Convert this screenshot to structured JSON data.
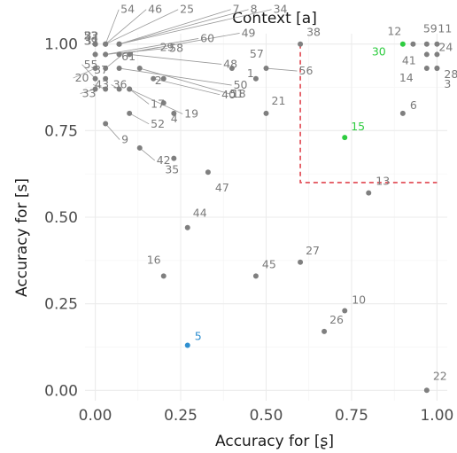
{
  "chart_data": {
    "type": "scatter",
    "title": "Context [a]",
    "xlabel": "Accuracy for [ʂ]",
    "ylabel": "Accuracy for [s]",
    "xlim": [
      -0.03,
      1.03
    ],
    "ylim": [
      -0.03,
      1.03
    ],
    "x_ticks": [
      0,
      0.25,
      0.5,
      0.75,
      1
    ],
    "y_ticks": [
      0,
      0.25,
      0.5,
      0.75,
      1
    ],
    "x_tick_labels": [
      "0.00",
      "0.25",
      "0.50",
      "0.75",
      "1.00"
    ],
    "y_tick_labels": [
      "0.00",
      "0.25",
      "0.50",
      "0.75",
      "1.00"
    ],
    "grid": true,
    "colors": {
      "default": "#7f7f7f",
      "highlight_green": "#2ecc40",
      "highlight_blue": "#2f8fd0",
      "threshold_line": "#e0454f"
    },
    "threshold": {
      "x_min": 0.6,
      "y_min": 0.6
    },
    "points": [
      {
        "label": "1",
        "x": 0.47,
        "y": 0.9,
        "color": "#7f7f7f"
      },
      {
        "label": "2",
        "x": 0.2,
        "y": 0.9,
        "color": "#7f7f7f"
      },
      {
        "label": "3",
        "x": 1.0,
        "y": 0.93,
        "color": "#7f7f7f"
      },
      {
        "label": "4",
        "x": 0.2,
        "y": 0.83,
        "color": "#7f7f7f"
      },
      {
        "label": "5",
        "x": 0.27,
        "y": 0.13,
        "color": "#2f8fd0"
      },
      {
        "label": "6",
        "x": 0.9,
        "y": 0.8,
        "color": "#7f7f7f"
      },
      {
        "label": "7",
        "x": 0.07,
        "y": 1.0,
        "color": "#7f7f7f"
      },
      {
        "label": "8",
        "x": 0.07,
        "y": 1.0,
        "color": "#7f7f7f"
      },
      {
        "label": "9",
        "x": 0.03,
        "y": 0.77,
        "color": "#7f7f7f"
      },
      {
        "label": "10",
        "x": 0.73,
        "y": 0.23,
        "color": "#7f7f7f"
      },
      {
        "label": "11",
        "x": 1.0,
        "y": 1.0,
        "color": "#7f7f7f"
      },
      {
        "label": "12",
        "x": 0.93,
        "y": 1.0,
        "color": "#7f7f7f"
      },
      {
        "label": "13",
        "x": 0.8,
        "y": 0.57,
        "color": "#7f7f7f"
      },
      {
        "label": "14",
        "x": 0.97,
        "y": 0.93,
        "color": "#7f7f7f"
      },
      {
        "label": "15",
        "x": 0.73,
        "y": 0.73,
        "color": "#2ecc40"
      },
      {
        "label": "16",
        "x": 0.2,
        "y": 0.33,
        "color": "#7f7f7f"
      },
      {
        "label": "17",
        "x": 0.1,
        "y": 0.87,
        "color": "#7f7f7f"
      },
      {
        "label": "18",
        "x": 0.13,
        "y": 0.93,
        "color": "#7f7f7f"
      },
      {
        "label": "19",
        "x": 0.1,
        "y": 0.87,
        "color": "#7f7f7f"
      },
      {
        "label": "20",
        "x": 0.0,
        "y": 0.93,
        "color": "#7f7f7f"
      },
      {
        "label": "21",
        "x": 0.5,
        "y": 0.8,
        "color": "#7f7f7f"
      },
      {
        "label": "22",
        "x": 0.97,
        "y": 0.0,
        "color": "#7f7f7f"
      },
      {
        "label": "23",
        "x": 0.0,
        "y": 1.0,
        "color": "#7f7f7f"
      },
      {
        "label": "24",
        "x": 1.0,
        "y": 0.97,
        "color": "#7f7f7f"
      },
      {
        "label": "25",
        "x": 0.03,
        "y": 1.0,
        "color": "#7f7f7f"
      },
      {
        "label": "26",
        "x": 0.67,
        "y": 0.17,
        "color": "#7f7f7f"
      },
      {
        "label": "27",
        "x": 0.6,
        "y": 0.37,
        "color": "#7f7f7f"
      },
      {
        "label": "28",
        "x": 1.0,
        "y": 0.93,
        "color": "#7f7f7f"
      },
      {
        "label": "29",
        "x": 0.07,
        "y": 0.97,
        "color": "#7f7f7f"
      },
      {
        "label": "30",
        "x": 0.9,
        "y": 1.0,
        "color": "#2ecc40"
      },
      {
        "label": "31",
        "x": 0.0,
        "y": 0.97,
        "color": "#7f7f7f"
      },
      {
        "label": "32",
        "x": 0.0,
        "y": 1.0,
        "color": "#7f7f7f"
      },
      {
        "label": "33",
        "x": 0.0,
        "y": 0.87,
        "color": "#7f7f7f"
      },
      {
        "label": "34",
        "x": 0.07,
        "y": 1.0,
        "color": "#7f7f7f"
      },
      {
        "label": "35",
        "x": 0.23,
        "y": 0.67,
        "color": "#7f7f7f"
      },
      {
        "label": "36",
        "x": 0.07,
        "y": 0.87,
        "color": "#7f7f7f"
      },
      {
        "label": "37",
        "x": 0.03,
        "y": 0.9,
        "color": "#7f7f7f"
      },
      {
        "label": "38",
        "x": 0.6,
        "y": 1.0,
        "color": "#7f7f7f"
      },
      {
        "label": "39",
        "x": 0.0,
        "y": 0.97,
        "color": "#7f7f7f"
      },
      {
        "label": "40",
        "x": 0.17,
        "y": 0.9,
        "color": "#7f7f7f"
      },
      {
        "label": "41",
        "x": 0.97,
        "y": 0.97,
        "color": "#7f7f7f"
      },
      {
        "label": "42",
        "x": 0.13,
        "y": 0.7,
        "color": "#7f7f7f"
      },
      {
        "label": "43",
        "x": 0.03,
        "y": 0.87,
        "color": "#7f7f7f"
      },
      {
        "label": "44",
        "x": 0.27,
        "y": 0.47,
        "color": "#7f7f7f"
      },
      {
        "label": "45",
        "x": 0.47,
        "y": 0.33,
        "color": "#7f7f7f"
      },
      {
        "label": "46",
        "x": 0.03,
        "y": 1.0,
        "color": "#7f7f7f"
      },
      {
        "label": "47",
        "x": 0.33,
        "y": 0.63,
        "color": "#7f7f7f"
      },
      {
        "label": "48",
        "x": 0.1,
        "y": 0.97,
        "color": "#7f7f7f"
      },
      {
        "label": "49",
        "x": 0.07,
        "y": 0.97,
        "color": "#7f7f7f"
      },
      {
        "label": "50",
        "x": 0.07,
        "y": 0.93,
        "color": "#7f7f7f"
      },
      {
        "label": "51",
        "x": 0.23,
        "y": 0.8,
        "color": "#7f7f7f"
      },
      {
        "label": "52",
        "x": 0.1,
        "y": 0.8,
        "color": "#7f7f7f"
      },
      {
        "label": "53",
        "x": 0.0,
        "y": 1.0,
        "color": "#7f7f7f"
      },
      {
        "label": "54",
        "x": 0.03,
        "y": 1.0,
        "color": "#7f7f7f"
      },
      {
        "label": "55",
        "x": 0.0,
        "y": 0.9,
        "color": "#7f7f7f"
      },
      {
        "label": "56",
        "x": 0.5,
        "y": 0.93,
        "color": "#7f7f7f"
      },
      {
        "label": "57",
        "x": 0.4,
        "y": 0.93,
        "color": "#7f7f7f"
      },
      {
        "label": "58",
        "x": 0.03,
        "y": 0.97,
        "color": "#7f7f7f"
      },
      {
        "label": "59",
        "x": 0.97,
        "y": 1.0,
        "color": "#7f7f7f"
      },
      {
        "label": "60",
        "x": 0.03,
        "y": 0.97,
        "color": "#7f7f7f"
      },
      {
        "label": "61",
        "x": 0.03,
        "y": 0.93,
        "color": "#7f7f7f"
      }
    ]
  }
}
